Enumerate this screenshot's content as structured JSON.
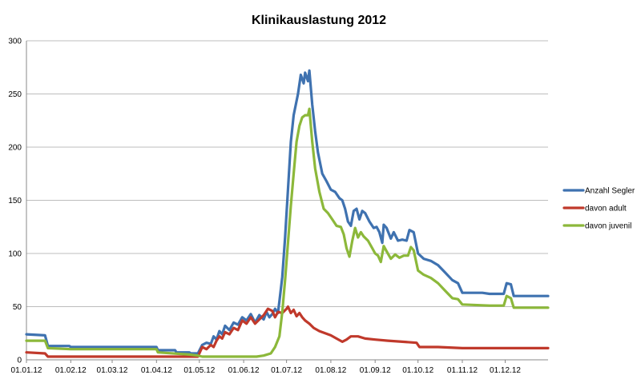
{
  "chart_data": {
    "type": "line",
    "title": "Klinikauslastung 2012",
    "xlabel": "",
    "ylabel": "",
    "ylim": [
      0,
      300
    ],
    "yticks": [
      0,
      50,
      100,
      150,
      200,
      250,
      300
    ],
    "xlim": [
      "2012-01-01",
      "2012-12-31"
    ],
    "xtick_dates": [
      "2012-01-01",
      "2012-02-01",
      "2012-03-01",
      "2012-04-01",
      "2012-05-01",
      "2012-06-01",
      "2012-07-01",
      "2012-08-01",
      "2012-09-01",
      "2012-10-01",
      "2012-11-01",
      "2012-12-01"
    ],
    "xtick_labels": [
      "01.01.12",
      "01.02.12",
      "01.03.12",
      "01.04.12",
      "01.05.12",
      "01.06.12",
      "01.07.12",
      "01.08.12",
      "01.09.12",
      "01.10.12",
      "01.11.12",
      "01.12.12"
    ],
    "grid": true,
    "legend": "right",
    "series": [
      {
        "name": "Anzahl Segler",
        "color": "#3f72b0",
        "points": [
          [
            "2012-01-01",
            24
          ],
          [
            "2012-01-14",
            23
          ],
          [
            "2012-01-16",
            13
          ],
          [
            "2012-01-31",
            13
          ],
          [
            "2012-02-01",
            12
          ],
          [
            "2012-04-01",
            12
          ],
          [
            "2012-04-02",
            9
          ],
          [
            "2012-04-14",
            9
          ],
          [
            "2012-04-15",
            7
          ],
          [
            "2012-04-24",
            7
          ],
          [
            "2012-04-25",
            6
          ],
          [
            "2012-04-30",
            6
          ],
          [
            "2012-05-03",
            14
          ],
          [
            "2012-05-06",
            16
          ],
          [
            "2012-05-09",
            15
          ],
          [
            "2012-05-11",
            22
          ],
          [
            "2012-05-13",
            19
          ],
          [
            "2012-05-15",
            27
          ],
          [
            "2012-05-17",
            24
          ],
          [
            "2012-05-19",
            32
          ],
          [
            "2012-05-22",
            28
          ],
          [
            "2012-05-25",
            35
          ],
          [
            "2012-05-28",
            33
          ],
          [
            "2012-05-31",
            40
          ],
          [
            "2012-06-03",
            37
          ],
          [
            "2012-06-06",
            43
          ],
          [
            "2012-06-09",
            35
          ],
          [
            "2012-06-12",
            42
          ],
          [
            "2012-06-15",
            38
          ],
          [
            "2012-06-17",
            45
          ],
          [
            "2012-06-19",
            40
          ],
          [
            "2012-06-21",
            43
          ],
          [
            "2012-06-23",
            48
          ],
          [
            "2012-06-25",
            44
          ],
          [
            "2012-06-26",
            55
          ],
          [
            "2012-06-28",
            78
          ],
          [
            "2012-06-30",
            115
          ],
          [
            "2012-07-02",
            160
          ],
          [
            "2012-07-04",
            205
          ],
          [
            "2012-07-06",
            230
          ],
          [
            "2012-07-09",
            250
          ],
          [
            "2012-07-11",
            268
          ],
          [
            "2012-07-13",
            260
          ],
          [
            "2012-07-14",
            270
          ],
          [
            "2012-07-16",
            262
          ],
          [
            "2012-07-17",
            272
          ],
          [
            "2012-07-19",
            240
          ],
          [
            "2012-07-21",
            215
          ],
          [
            "2012-07-23",
            195
          ],
          [
            "2012-07-26",
            175
          ],
          [
            "2012-07-29",
            168
          ],
          [
            "2012-08-01",
            160
          ],
          [
            "2012-08-04",
            158
          ],
          [
            "2012-08-07",
            152
          ],
          [
            "2012-08-09",
            150
          ],
          [
            "2012-08-11",
            142
          ],
          [
            "2012-08-13",
            130
          ],
          [
            "2012-08-15",
            126
          ],
          [
            "2012-08-17",
            140
          ],
          [
            "2012-08-19",
            142
          ],
          [
            "2012-08-21",
            132
          ],
          [
            "2012-08-23",
            140
          ],
          [
            "2012-08-25",
            138
          ],
          [
            "2012-08-28",
            130
          ],
          [
            "2012-08-31",
            124
          ],
          [
            "2012-09-02",
            125
          ],
          [
            "2012-09-04",
            120
          ],
          [
            "2012-09-06",
            110
          ],
          [
            "2012-09-07",
            127
          ],
          [
            "2012-09-09",
            124
          ],
          [
            "2012-09-12",
            114
          ],
          [
            "2012-09-14",
            120
          ],
          [
            "2012-09-17",
            112
          ],
          [
            "2012-09-20",
            113
          ],
          [
            "2012-09-23",
            112
          ],
          [
            "2012-09-25",
            122
          ],
          [
            "2012-09-28",
            120
          ],
          [
            "2012-10-01",
            100
          ],
          [
            "2012-10-05",
            95
          ],
          [
            "2012-10-10",
            93
          ],
          [
            "2012-10-15",
            89
          ],
          [
            "2012-10-20",
            82
          ],
          [
            "2012-10-25",
            75
          ],
          [
            "2012-10-29",
            72
          ],
          [
            "2012-11-01",
            63
          ],
          [
            "2012-11-15",
            63
          ],
          [
            "2012-11-20",
            62
          ],
          [
            "2012-11-30",
            62
          ],
          [
            "2012-12-02",
            72
          ],
          [
            "2012-12-05",
            71
          ],
          [
            "2012-12-07",
            60
          ],
          [
            "2012-12-31",
            60
          ]
        ]
      },
      {
        "name": "davon adult",
        "color": "#c0392b",
        "points": [
          [
            "2012-01-01",
            7
          ],
          [
            "2012-01-14",
            6
          ],
          [
            "2012-01-16",
            3
          ],
          [
            "2012-04-30",
            3
          ],
          [
            "2012-05-03",
            12
          ],
          [
            "2012-05-06",
            10
          ],
          [
            "2012-05-09",
            14
          ],
          [
            "2012-05-11",
            12
          ],
          [
            "2012-05-13",
            18
          ],
          [
            "2012-05-15",
            22
          ],
          [
            "2012-05-17",
            20
          ],
          [
            "2012-05-19",
            26
          ],
          [
            "2012-05-22",
            24
          ],
          [
            "2012-05-25",
            30
          ],
          [
            "2012-05-28",
            28
          ],
          [
            "2012-05-31",
            37
          ],
          [
            "2012-06-03",
            34
          ],
          [
            "2012-06-06",
            40
          ],
          [
            "2012-06-09",
            34
          ],
          [
            "2012-06-12",
            38
          ],
          [
            "2012-06-15",
            42
          ],
          [
            "2012-06-18",
            48
          ],
          [
            "2012-06-21",
            46
          ],
          [
            "2012-06-23",
            40
          ],
          [
            "2012-06-25",
            45
          ],
          [
            "2012-06-28",
            44
          ],
          [
            "2012-07-01",
            48
          ],
          [
            "2012-07-02",
            50
          ],
          [
            "2012-07-04",
            44
          ],
          [
            "2012-07-06",
            47
          ],
          [
            "2012-07-08",
            41
          ],
          [
            "2012-07-10",
            44
          ],
          [
            "2012-07-12",
            40
          ],
          [
            "2012-07-14",
            37
          ],
          [
            "2012-07-17",
            34
          ],
          [
            "2012-07-20",
            30
          ],
          [
            "2012-07-24",
            27
          ],
          [
            "2012-07-28",
            25
          ],
          [
            "2012-08-01",
            23
          ],
          [
            "2012-08-05",
            20
          ],
          [
            "2012-08-09",
            17
          ],
          [
            "2012-08-12",
            19
          ],
          [
            "2012-08-15",
            22
          ],
          [
            "2012-08-20",
            22
          ],
          [
            "2012-08-25",
            20
          ],
          [
            "2012-09-01",
            19
          ],
          [
            "2012-09-10",
            18
          ],
          [
            "2012-09-20",
            17
          ],
          [
            "2012-09-30",
            16
          ],
          [
            "2012-10-02",
            12
          ],
          [
            "2012-10-15",
            12
          ],
          [
            "2012-11-01",
            11
          ],
          [
            "2012-12-31",
            11
          ]
        ]
      },
      {
        "name": "davon juvenil",
        "color": "#8cb83a",
        "points": [
          [
            "2012-01-01",
            18
          ],
          [
            "2012-01-14",
            18
          ],
          [
            "2012-01-16",
            11
          ],
          [
            "2012-02-01",
            10
          ],
          [
            "2012-04-01",
            10
          ],
          [
            "2012-04-02",
            7
          ],
          [
            "2012-04-24",
            5
          ],
          [
            "2012-04-30",
            4
          ],
          [
            "2012-05-03",
            3
          ],
          [
            "2012-06-10",
            3
          ],
          [
            "2012-06-15",
            4
          ],
          [
            "2012-06-20",
            6
          ],
          [
            "2012-06-23",
            12
          ],
          [
            "2012-06-26",
            22
          ],
          [
            "2012-06-28",
            45
          ],
          [
            "2012-06-30",
            75
          ],
          [
            "2012-07-02",
            110
          ],
          [
            "2012-07-04",
            145
          ],
          [
            "2012-07-06",
            175
          ],
          [
            "2012-07-08",
            205
          ],
          [
            "2012-07-10",
            220
          ],
          [
            "2012-07-12",
            228
          ],
          [
            "2012-07-14",
            230
          ],
          [
            "2012-07-16",
            230
          ],
          [
            "2012-07-17",
            236
          ],
          [
            "2012-07-19",
            205
          ],
          [
            "2012-07-21",
            180
          ],
          [
            "2012-07-24",
            158
          ],
          [
            "2012-07-27",
            142
          ],
          [
            "2012-07-30",
            138
          ],
          [
            "2012-08-02",
            132
          ],
          [
            "2012-08-05",
            126
          ],
          [
            "2012-08-08",
            125
          ],
          [
            "2012-08-10",
            118
          ],
          [
            "2012-08-12",
            105
          ],
          [
            "2012-08-14",
            97
          ],
          [
            "2012-08-16",
            112
          ],
          [
            "2012-08-18",
            124
          ],
          [
            "2012-08-20",
            115
          ],
          [
            "2012-08-22",
            120
          ],
          [
            "2012-08-24",
            116
          ],
          [
            "2012-08-27",
            112
          ],
          [
            "2012-08-30",
            105
          ],
          [
            "2012-09-01",
            100
          ],
          [
            "2012-09-03",
            98
          ],
          [
            "2012-09-05",
            92
          ],
          [
            "2012-09-07",
            107
          ],
          [
            "2012-09-09",
            102
          ],
          [
            "2012-09-12",
            95
          ],
          [
            "2012-09-15",
            99
          ],
          [
            "2012-09-18",
            96
          ],
          [
            "2012-09-21",
            98
          ],
          [
            "2012-09-24",
            98
          ],
          [
            "2012-09-26",
            106
          ],
          [
            "2012-09-28",
            103
          ],
          [
            "2012-10-01",
            84
          ],
          [
            "2012-10-05",
            80
          ],
          [
            "2012-10-10",
            77
          ],
          [
            "2012-10-15",
            72
          ],
          [
            "2012-10-20",
            65
          ],
          [
            "2012-10-25",
            58
          ],
          [
            "2012-10-29",
            57
          ],
          [
            "2012-11-01",
            52
          ],
          [
            "2012-11-20",
            51
          ],
          [
            "2012-11-30",
            51
          ],
          [
            "2012-12-02",
            60
          ],
          [
            "2012-12-05",
            58
          ],
          [
            "2012-12-07",
            49
          ],
          [
            "2012-12-31",
            49
          ]
        ]
      }
    ]
  }
}
